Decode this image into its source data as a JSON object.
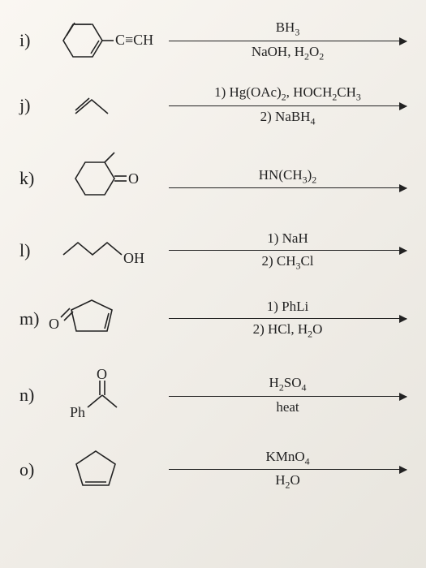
{
  "stroke": "#222",
  "items": [
    {
      "label": "i)",
      "structure": "phenylacetylene",
      "substituent": "C≡CH",
      "top": "BH<sub>3</sub>",
      "bottom": "NaOH, H<sub>2</sub>O<sub>2</sub>"
    },
    {
      "label": "j)",
      "structure": "propene",
      "top": "1) Hg(OAc)<sub>2</sub>, HOCH<sub>2</sub>CH<sub>3</sub>",
      "bottom": "2) NaBH<sub>4</sub>"
    },
    {
      "label": "k)",
      "structure": "2-methylcyclohexanone",
      "heteroatom": "O",
      "top": "HN(CH<sub>3</sub>)<sub>2</sub>",
      "bottom": ""
    },
    {
      "label": "l)",
      "structure": "n-butanol",
      "heteroatom": "OH",
      "top": "1) NaH",
      "bottom": "2) CH<sub>3</sub>Cl"
    },
    {
      "label": "m)",
      "structure": "cyclopent-2-enone",
      "heteroatom": "O",
      "top": "1) PhLi",
      "bottom": "2) HCl, H<sub>2</sub>O"
    },
    {
      "label": "n)",
      "structure": "acetophenone",
      "heteroatom": "O",
      "phenyl": "Ph",
      "top": "H<sub>2</sub>SO<sub>4</sub>",
      "bottom": "heat"
    },
    {
      "label": "o)",
      "structure": "cyclopentene",
      "top": "KMnO<sub>4</sub>",
      "bottom": "H<sub>2</sub>O"
    }
  ]
}
